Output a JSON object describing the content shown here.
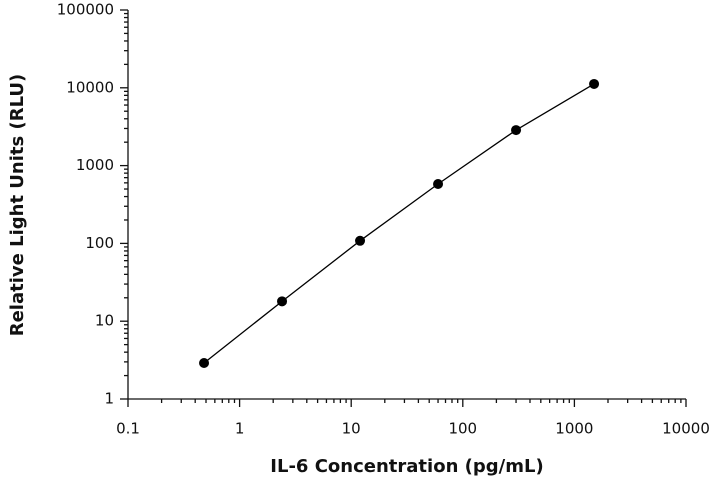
{
  "chart_data": {
    "type": "scatter",
    "x_label": "IL-6 Concentration (pg/mL)",
    "y_label": "Relative Light Units (RLU)",
    "x": [
      0.48,
      2.4,
      12,
      60,
      300,
      1500
    ],
    "series": [
      {
        "color": "#000000",
        "values": [
          2.9,
          18,
          108,
          580,
          2860,
          11200
        ]
      }
    ],
    "xscale": "log",
    "yscale": "log",
    "connect": true,
    "xlim": [
      0.1,
      10000
    ],
    "xticks": [
      0.1,
      1,
      10,
      100,
      1000,
      10000
    ],
    "ylim": [
      1,
      100000
    ],
    "yticks": [
      1,
      10,
      100,
      1000,
      10000,
      100000
    ]
  }
}
